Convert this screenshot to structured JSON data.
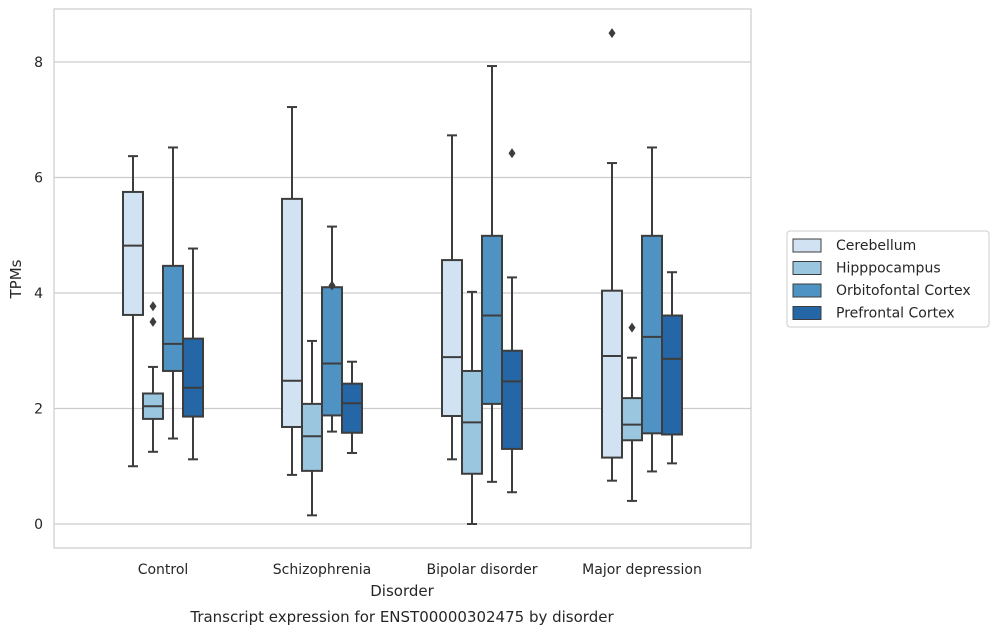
{
  "chart_data": {
    "type": "boxplot",
    "caption": "Transcript expression for ENST00000302475 by disorder",
    "xlabel": "Disorder",
    "ylabel": "TPMs",
    "ylim": [
      -0.4,
      8.9
    ],
    "yticks": [
      0,
      2,
      4,
      6,
      8
    ],
    "grid": "horizontal",
    "legend_position": "right",
    "categories": [
      "Control",
      "Schizophrenia",
      "Bipolar disorder",
      "Major depression"
    ],
    "series": [
      {
        "name": "Cerebellum",
        "color": "#d1e2f2",
        "boxes": [
          {
            "whisker_low": 1.0,
            "q1": 3.62,
            "median": 4.82,
            "q3": 5.75,
            "whisker_high": 6.37,
            "outliers": []
          },
          {
            "whisker_low": 0.85,
            "q1": 1.68,
            "median": 2.48,
            "q3": 5.63,
            "whisker_high": 7.22,
            "outliers": []
          },
          {
            "whisker_low": 1.12,
            "q1": 1.87,
            "median": 2.89,
            "q3": 4.57,
            "whisker_high": 6.73,
            "outliers": []
          },
          {
            "whisker_low": 0.75,
            "q1": 1.15,
            "median": 2.91,
            "q3": 4.04,
            "whisker_high": 6.25,
            "outliers": [
              8.5
            ]
          }
        ]
      },
      {
        "name": "Hipppocampus",
        "color": "#9ac6e0",
        "boxes": [
          {
            "whisker_low": 1.25,
            "q1": 1.82,
            "median": 2.04,
            "q3": 2.26,
            "whisker_high": 2.72,
            "outliers": [
              3.5,
              3.77
            ]
          },
          {
            "whisker_low": 0.15,
            "q1": 0.92,
            "median": 1.52,
            "q3": 2.08,
            "whisker_high": 3.17,
            "outliers": []
          },
          {
            "whisker_low": 0.0,
            "q1": 0.87,
            "median": 1.76,
            "q3": 2.65,
            "whisker_high": 4.02,
            "outliers": []
          },
          {
            "whisker_low": 0.4,
            "q1": 1.45,
            "median": 1.72,
            "q3": 2.18,
            "whisker_high": 2.88,
            "outliers": [
              3.4
            ]
          }
        ]
      },
      {
        "name": "Orbitofontal Cortex",
        "color": "#4f93c4",
        "boxes": [
          {
            "whisker_low": 1.48,
            "q1": 2.65,
            "median": 3.12,
            "q3": 4.47,
            "whisker_high": 6.52,
            "outliers": []
          },
          {
            "whisker_low": 1.6,
            "q1": 1.88,
            "median": 2.78,
            "q3": 4.1,
            "whisker_high": 5.15,
            "outliers": [
              4.13
            ]
          },
          {
            "whisker_low": 0.73,
            "q1": 2.08,
            "median": 3.61,
            "q3": 4.99,
            "whisker_high": 7.93,
            "outliers": []
          },
          {
            "whisker_low": 0.91,
            "q1": 1.57,
            "median": 3.24,
            "q3": 4.99,
            "whisker_high": 6.52,
            "outliers": []
          }
        ]
      },
      {
        "name": "Prefrontal Cortex",
        "color": "#2466a6",
        "boxes": [
          {
            "whisker_low": 1.12,
            "q1": 1.86,
            "median": 2.36,
            "q3": 3.21,
            "whisker_high": 4.77,
            "outliers": []
          },
          {
            "whisker_low": 1.23,
            "q1": 1.58,
            "median": 2.09,
            "q3": 2.43,
            "whisker_high": 2.81,
            "outliers": []
          },
          {
            "whisker_low": 0.55,
            "q1": 1.3,
            "median": 2.47,
            "q3": 3.0,
            "whisker_high": 4.27,
            "outliers": [
              6.42
            ]
          },
          {
            "whisker_low": 1.05,
            "q1": 1.55,
            "median": 2.86,
            "q3": 3.61,
            "whisker_high": 4.36,
            "outliers": []
          }
        ]
      }
    ]
  }
}
